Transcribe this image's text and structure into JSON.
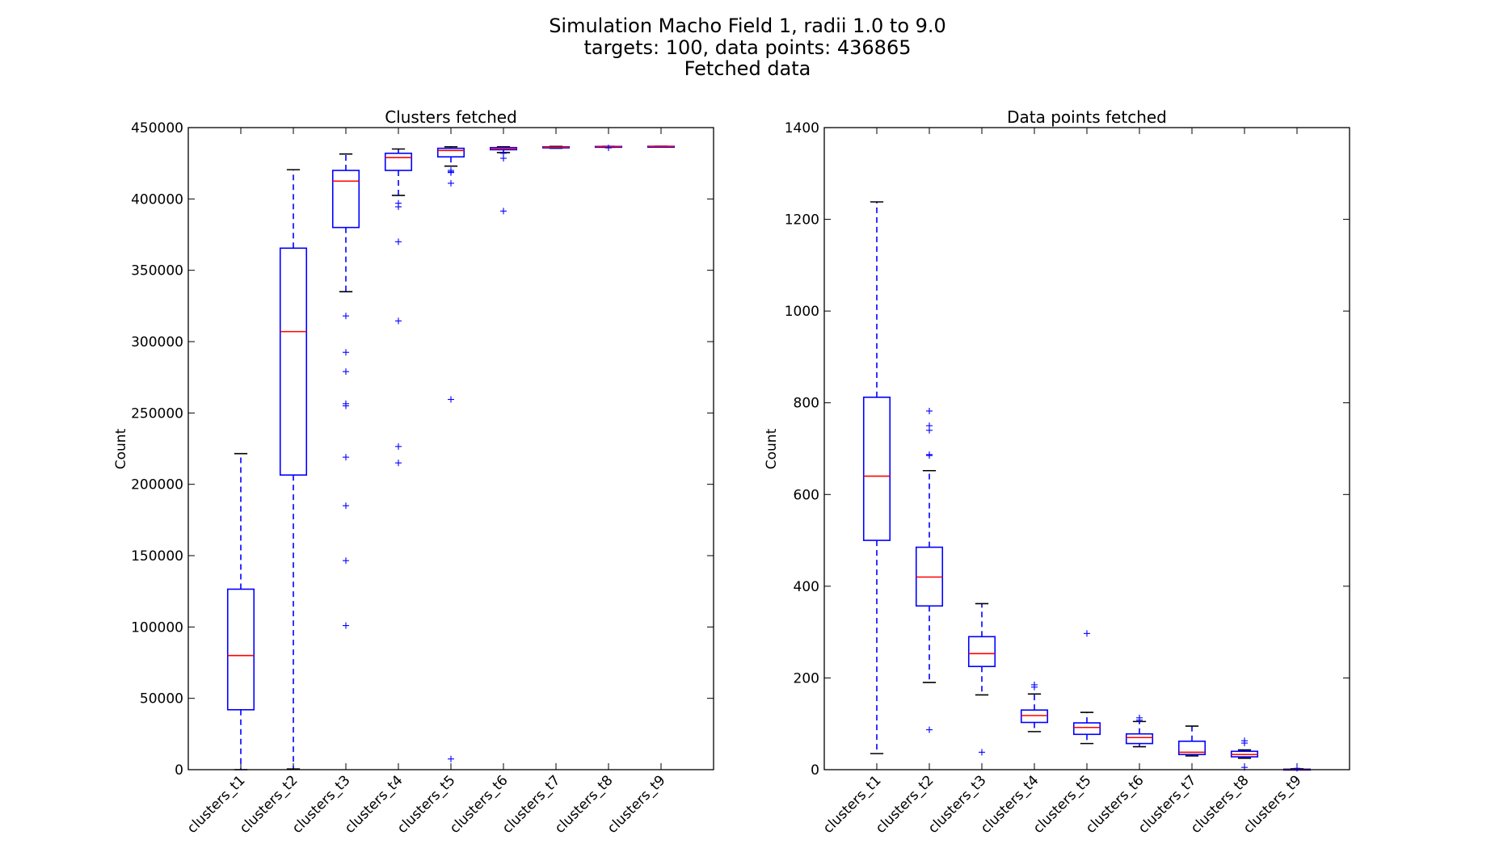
{
  "figure": {
    "title_lines": [
      "Simulation Macho Field 1, radii 1.0 to 9.0",
      "targets: 100,   data points: 436865",
      "Fetched data"
    ]
  },
  "chart_data": [
    {
      "type": "box",
      "title": "Clusters fetched",
      "ylabel": "Count",
      "xlabel": "",
      "ylim": [
        0,
        450000
      ],
      "yticks": [
        0,
        50000,
        100000,
        150000,
        200000,
        250000,
        300000,
        350000,
        400000,
        450000
      ],
      "ytick_labels": [
        "0",
        "50000",
        "100000",
        "150000",
        "200000",
        "250000",
        "300000",
        "350000",
        "400000",
        "450000"
      ],
      "categories": [
        "clusters_t1",
        "clusters_t2",
        "clusters_t3",
        "clusters_t4",
        "clusters_t5",
        "clusters_t6",
        "clusters_t7",
        "clusters_t8",
        "clusters_t9"
      ],
      "boxes": [
        {
          "whislo": 0,
          "q1": 42000,
          "med": 80000,
          "q3": 126500,
          "whishi": 221500,
          "fliers": []
        },
        {
          "whislo": 500,
          "q1": 206500,
          "med": 307000,
          "q3": 365500,
          "whishi": 420500,
          "fliers": []
        },
        {
          "whislo": 335000,
          "q1": 380000,
          "med": 412500,
          "q3": 420000,
          "whishi": 431500,
          "fliers": [
            318000,
            292500,
            279000,
            256500,
            255000,
            219000,
            185000,
            146500,
            101000
          ]
        },
        {
          "whislo": 402500,
          "q1": 420000,
          "med": 429000,
          "q3": 432000,
          "whishi": 435000,
          "fliers": [
            397000,
            394500,
            370000,
            314500,
            226500,
            215000
          ]
        },
        {
          "whislo": 423000,
          "q1": 429500,
          "med": 434000,
          "q3": 435500,
          "whishi": 436500,
          "fliers": [
            420000,
            419000,
            418500,
            411000,
            259500,
            7500
          ]
        },
        {
          "whislo": 432500,
          "q1": 434500,
          "med": 435500,
          "q3": 436000,
          "whishi": 436500,
          "fliers": [
            432000,
            428500,
            391500
          ]
        },
        {
          "whislo": 435500,
          "q1": 435800,
          "med": 436200,
          "q3": 436500,
          "whishi": 436800,
          "fliers": []
        },
        {
          "whislo": 436200,
          "q1": 436500,
          "med": 436700,
          "q3": 436800,
          "whishi": 436865,
          "fliers": [
            435800
          ]
        },
        {
          "whislo": 436865,
          "q1": 436865,
          "med": 436865,
          "q3": 436865,
          "whishi": 436865,
          "fliers": []
        }
      ]
    },
    {
      "type": "box",
      "title": "Data points fetched",
      "ylabel": "Count",
      "xlabel": "",
      "ylim": [
        0,
        1400
      ],
      "yticks": [
        0,
        200,
        400,
        600,
        800,
        1000,
        1200,
        1400
      ],
      "ytick_labels": [
        "0",
        "200",
        "400",
        "600",
        "800",
        "1000",
        "1200",
        "1400"
      ],
      "categories": [
        "clusters_t1",
        "clusters_t2",
        "clusters_t3",
        "clusters_t4",
        "clusters_t5",
        "clusters_t6",
        "clusters_t7",
        "clusters_t8",
        "clusters_t9"
      ],
      "boxes": [
        {
          "whislo": 35,
          "q1": 500,
          "med": 640,
          "q3": 812,
          "whishi": 1238,
          "fliers": []
        },
        {
          "whislo": 190,
          "q1": 357,
          "med": 420,
          "q3": 485,
          "whishi": 652,
          "fliers": [
            782,
            750,
            740,
            687,
            685,
            87
          ]
        },
        {
          "whislo": 163,
          "q1": 225,
          "med": 253,
          "q3": 290,
          "whishi": 362,
          "fliers": [
            38
          ]
        },
        {
          "whislo": 83,
          "q1": 103,
          "med": 118,
          "q3": 130,
          "whishi": 165,
          "fliers": [
            185,
            180
          ]
        },
        {
          "whislo": 57,
          "q1": 77,
          "med": 92,
          "q3": 102,
          "whishi": 125,
          "fliers": [
            297
          ]
        },
        {
          "whislo": 50,
          "q1": 57,
          "med": 70,
          "q3": 78,
          "whishi": 105,
          "fliers": [
            113,
            108
          ]
        },
        {
          "whislo": 30,
          "q1": 33,
          "med": 38,
          "q3": 62,
          "whishi": 95,
          "fliers": []
        },
        {
          "whislo": 25,
          "q1": 28,
          "med": 33,
          "q3": 40,
          "whishi": 43,
          "fliers": [
            63,
            58,
            5
          ]
        },
        {
          "whislo": 0,
          "q1": 0,
          "med": 0,
          "q3": 1,
          "whishi": 2,
          "fliers": [
            3
          ]
        }
      ]
    }
  ]
}
